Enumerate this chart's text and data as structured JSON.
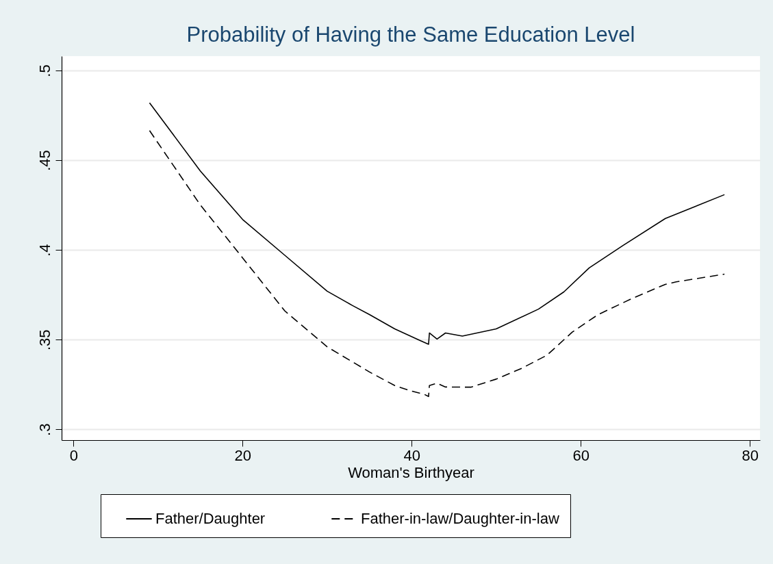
{
  "chart_data": {
    "type": "line",
    "title": "Probability of Having the Same Education Level",
    "xlabel": "Woman's Birthyear",
    "xlim": [
      -1.4,
      81.2
    ],
    "ylim": [
      0.294,
      0.508
    ],
    "xticks": [
      0,
      20,
      40,
      60,
      80
    ],
    "yticks": [
      {
        "value": 0.3,
        "label": ".3"
      },
      {
        "value": 0.35,
        "label": ".35"
      },
      {
        "value": 0.4,
        "label": ".4"
      },
      {
        "value": 0.45,
        "label": ".45"
      },
      {
        "value": 0.5,
        "label": ".5"
      }
    ],
    "grid": "y",
    "legend": "bottom",
    "series": [
      {
        "name": "Father/Daughter",
        "color": "#000000",
        "line_style": "solid",
        "x": [
          9,
          15,
          20,
          25,
          30,
          33,
          35,
          38,
          41,
          42,
          42.1,
          43,
          44,
          46,
          50,
          55,
          58,
          61,
          65,
          70,
          77
        ],
        "values": [
          0.482,
          0.444,
          0.417,
          0.397,
          0.377,
          0.369,
          0.364,
          0.356,
          0.3495,
          0.3474,
          0.3537,
          0.3503,
          0.3537,
          0.352,
          0.356,
          0.367,
          0.3766,
          0.39,
          0.4025,
          0.4175,
          0.4308
        ]
      },
      {
        "name": "Father-in-law/Daughter-in-law",
        "color": "#000000",
        "line_style": "dashed",
        "x": [
          9,
          15,
          20,
          25,
          30,
          35,
          38,
          40,
          41.5,
          42,
          42.1,
          43,
          44,
          47,
          50,
          53,
          56,
          59,
          62,
          66,
          70,
          71.3,
          77
        ],
        "values": [
          0.4665,
          0.4251,
          0.3956,
          0.366,
          0.346,
          0.332,
          0.3244,
          0.3213,
          0.3195,
          0.3183,
          0.3244,
          0.3257,
          0.3236,
          0.3235,
          0.328,
          0.334,
          0.3413,
          0.3542,
          0.3638,
          0.3728,
          0.3808,
          0.3822,
          0.3865
        ]
      }
    ]
  }
}
